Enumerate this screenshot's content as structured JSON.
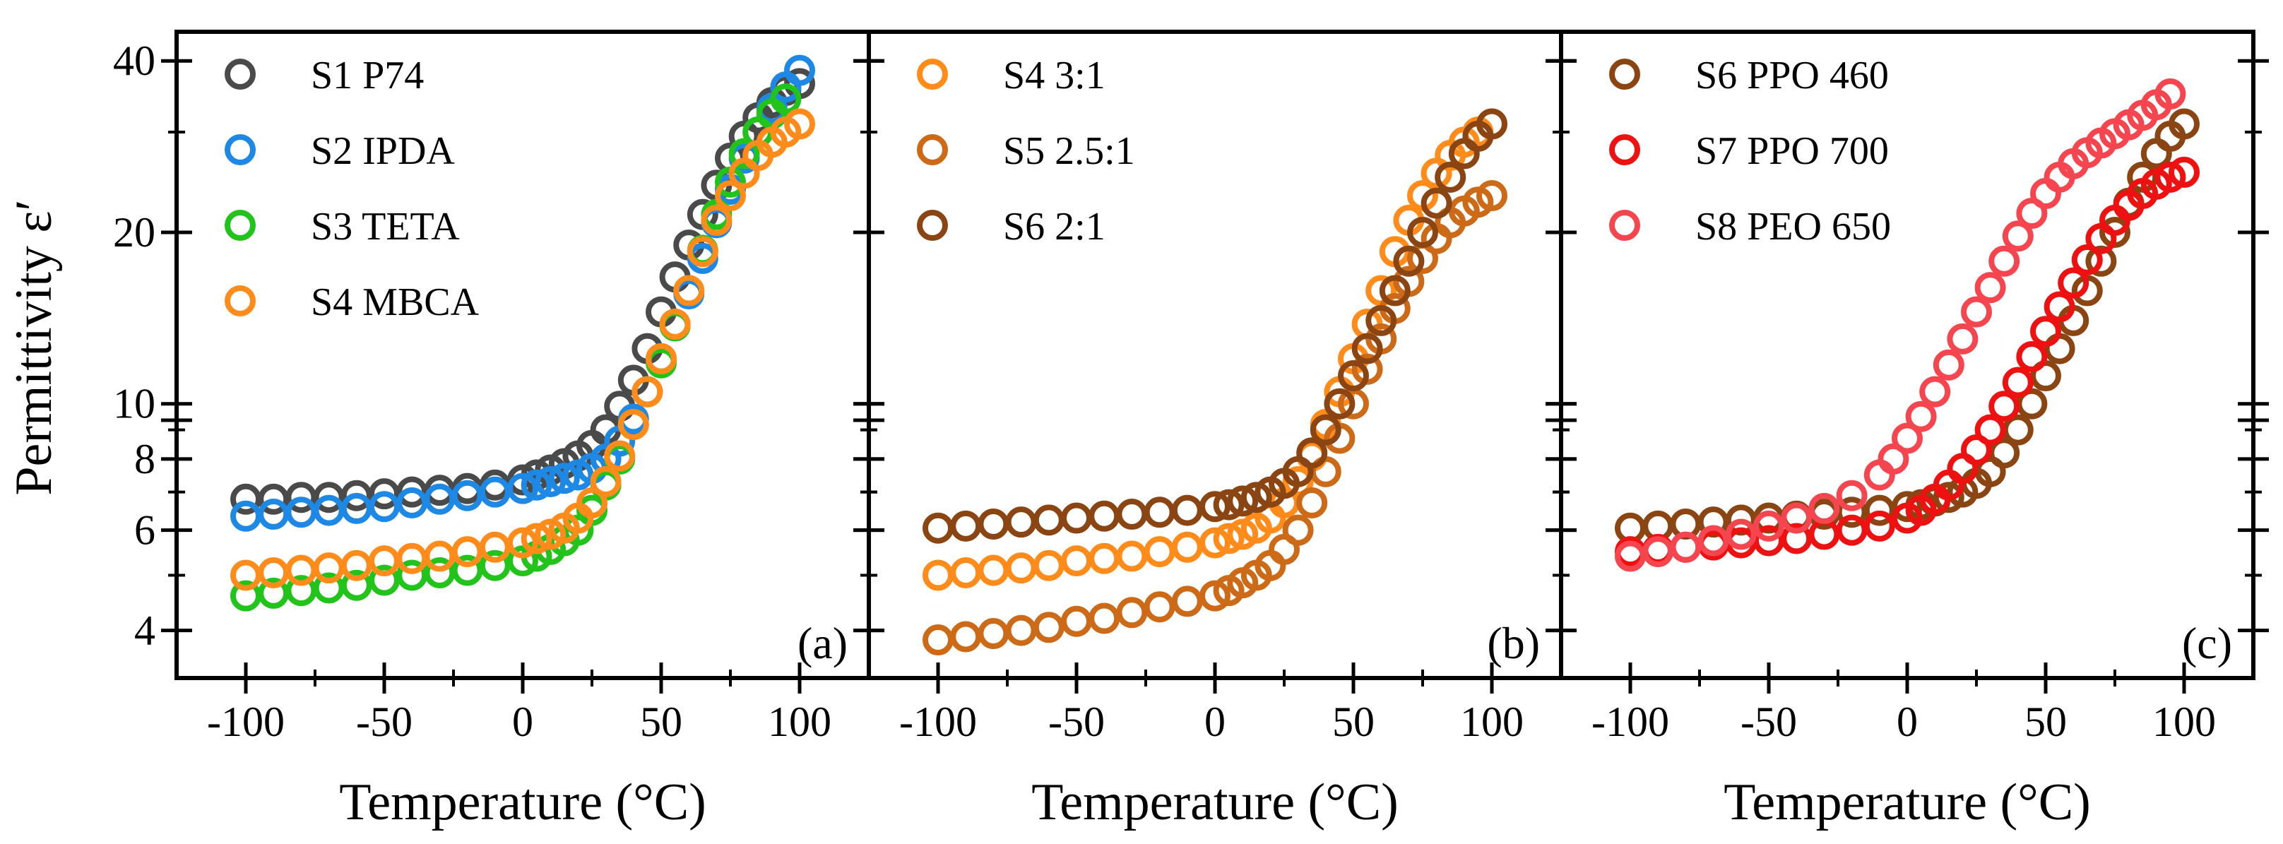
{
  "figure": {
    "ylabel": "Permittivity ε′",
    "xlabel": "Temperature  (°C)"
  },
  "chart_data": [
    {
      "type": "scatter",
      "panel": "(a)",
      "xlabel": "Temperature  (°C)",
      "ylabel": "Permittivity ε′",
      "xlim": [
        -125,
        125
      ],
      "ylim": [
        3.3,
        45
      ],
      "yscale": "log",
      "xticks": [
        -100,
        -50,
        0,
        50,
        100
      ],
      "yticks": [
        4,
        6,
        8,
        10,
        20,
        40
      ],
      "legend_position": "top-left",
      "series": [
        {
          "name": "S1 P74",
          "color": "#4a4a4a",
          "x": [
            -100,
            -90,
            -80,
            -70,
            -60,
            -50,
            -40,
            -30,
            -20,
            -10,
            0,
            5,
            10,
            15,
            20,
            25,
            30,
            35,
            40,
            45,
            50,
            55,
            60,
            65,
            70,
            75,
            80,
            85,
            90,
            95,
            100
          ],
          "y": [
            6.8,
            6.8,
            6.85,
            6.85,
            6.9,
            6.95,
            7.0,
            7.05,
            7.1,
            7.2,
            7.35,
            7.5,
            7.65,
            7.85,
            8.1,
            8.45,
            9.0,
            9.9,
            11.0,
            12.5,
            14.5,
            16.7,
            19.0,
            21.5,
            24.2,
            27.0,
            29.5,
            31.8,
            33.8,
            35.5,
            36.5
          ]
        },
        {
          "name": "S2 IPDA",
          "color": "#1e88e5",
          "x": [
            -100,
            -90,
            -80,
            -70,
            -60,
            -50,
            -40,
            -30,
            -20,
            -10,
            0,
            5,
            10,
            15,
            20,
            25,
            30,
            35,
            40,
            45,
            50,
            55,
            60,
            65,
            70,
            75,
            80,
            85,
            90,
            95,
            100
          ],
          "y": [
            6.35,
            6.4,
            6.45,
            6.5,
            6.55,
            6.6,
            6.7,
            6.8,
            6.9,
            7.0,
            7.1,
            7.2,
            7.3,
            7.4,
            7.5,
            7.7,
            8.0,
            8.6,
            9.4,
            10.5,
            12.0,
            13.8,
            15.6,
            18.0,
            20.8,
            23.8,
            27.0,
            30.0,
            33.0,
            36.0,
            38.5
          ]
        },
        {
          "name": "S3 TETA",
          "color": "#22c41c",
          "x": [
            -100,
            -90,
            -80,
            -70,
            -60,
            -50,
            -40,
            -30,
            -20,
            -10,
            0,
            5,
            10,
            15,
            20,
            25,
            30,
            35,
            40,
            45,
            50,
            55,
            60,
            65,
            70,
            75,
            80,
            85,
            90,
            95
          ],
          "y": [
            4.6,
            4.65,
            4.7,
            4.75,
            4.8,
            4.9,
            5.0,
            5.05,
            5.1,
            5.2,
            5.3,
            5.4,
            5.55,
            5.75,
            6.0,
            6.5,
            7.2,
            8.0,
            9.2,
            10.5,
            11.8,
            13.7,
            15.8,
            18.6,
            21.5,
            24.5,
            27.5,
            30.0,
            32.3,
            34.3
          ]
        },
        {
          "name": "S4 MBCA",
          "color": "#ff8c1a",
          "x": [
            -100,
            -90,
            -80,
            -70,
            -60,
            -50,
            -40,
            -30,
            -20,
            -10,
            0,
            5,
            10,
            15,
            20,
            25,
            30,
            35,
            40,
            45,
            50,
            55,
            60,
            65,
            70,
            75,
            80,
            85,
            90,
            95,
            100
          ],
          "y": [
            5.0,
            5.05,
            5.1,
            5.15,
            5.2,
            5.3,
            5.35,
            5.4,
            5.5,
            5.6,
            5.7,
            5.8,
            5.9,
            6.05,
            6.3,
            6.7,
            7.3,
            8.1,
            9.2,
            10.5,
            12.0,
            13.8,
            15.8,
            18.5,
            21.0,
            23.2,
            25.4,
            27.3,
            28.8,
            30.0,
            31.0
          ]
        }
      ]
    },
    {
      "type": "scatter",
      "panel": "(b)",
      "xlabel": "Temperature  (°C)",
      "xlim": [
        -125,
        125
      ],
      "ylim": [
        3.3,
        45
      ],
      "yscale": "log",
      "xticks": [
        -100,
        -50,
        0,
        50,
        100
      ],
      "legend_position": "top-left",
      "series": [
        {
          "name": "S4 3:1",
          "color": "#ff8c1a",
          "x": [
            -100,
            -90,
            -80,
            -70,
            -60,
            -50,
            -40,
            -30,
            -20,
            -10,
            0,
            5,
            10,
            15,
            20,
            25,
            30,
            35,
            40,
            45,
            50,
            55,
            60,
            65,
            70,
            75,
            80,
            85,
            90,
            95,
            100
          ],
          "y": [
            5.0,
            5.05,
            5.1,
            5.15,
            5.2,
            5.3,
            5.35,
            5.4,
            5.5,
            5.6,
            5.7,
            5.8,
            5.9,
            6.05,
            6.3,
            6.7,
            7.3,
            8.1,
            9.2,
            10.5,
            12.0,
            13.8,
            15.8,
            18.5,
            21.0,
            23.2,
            25.4,
            27.3,
            28.8,
            30.0,
            31.0
          ]
        },
        {
          "name": "S5 2.5:1",
          "color": "#cc6a18",
          "x": [
            -100,
            -90,
            -80,
            -70,
            -60,
            -50,
            -40,
            -30,
            -20,
            -10,
            0,
            5,
            10,
            15,
            20,
            25,
            30,
            35,
            40,
            45,
            50,
            55,
            60,
            65,
            70,
            75,
            80,
            85,
            90,
            95,
            100
          ],
          "y": [
            3.85,
            3.9,
            3.95,
            4.0,
            4.05,
            4.15,
            4.2,
            4.3,
            4.4,
            4.5,
            4.6,
            4.7,
            4.85,
            5.0,
            5.2,
            5.55,
            6.0,
            6.7,
            7.6,
            8.7,
            10.0,
            11.5,
            13.0,
            14.7,
            16.4,
            18.0,
            19.5,
            20.8,
            21.8,
            22.6,
            23.2
          ]
        },
        {
          "name": "S6 2:1",
          "color": "#8b4513",
          "x": [
            -100,
            -90,
            -80,
            -70,
            -60,
            -50,
            -40,
            -30,
            -20,
            -10,
            0,
            5,
            10,
            15,
            20,
            25,
            30,
            35,
            40,
            45,
            50,
            55,
            60,
            65,
            70,
            75,
            80,
            85,
            90,
            95,
            100
          ],
          "y": [
            6.05,
            6.1,
            6.15,
            6.2,
            6.25,
            6.3,
            6.35,
            6.4,
            6.45,
            6.5,
            6.6,
            6.65,
            6.75,
            6.85,
            7.0,
            7.25,
            7.6,
            8.2,
            9.0,
            10.0,
            11.2,
            12.5,
            14.0,
            15.8,
            17.8,
            20.0,
            22.5,
            25.0,
            27.5,
            29.5,
            31.0
          ]
        }
      ]
    },
    {
      "type": "scatter",
      "panel": "(c)",
      "xlabel": "Temperature  (°C)",
      "xlim": [
        -125,
        125
      ],
      "ylim": [
        3.3,
        45
      ],
      "yscale": "log",
      "xticks": [
        -100,
        -50,
        0,
        50,
        100
      ],
      "legend_position": "top-left",
      "series": [
        {
          "name": "S6 PPO 460",
          "color": "#8b4513",
          "x": [
            -100,
            -90,
            -80,
            -70,
            -60,
            -50,
            -40,
            -30,
            -20,
            -10,
            0,
            5,
            10,
            15,
            20,
            25,
            30,
            35,
            40,
            45,
            50,
            55,
            60,
            65,
            70,
            75,
            80,
            85,
            90,
            95,
            100
          ],
          "y": [
            6.05,
            6.1,
            6.15,
            6.2,
            6.25,
            6.3,
            6.35,
            6.4,
            6.45,
            6.5,
            6.6,
            6.65,
            6.75,
            6.85,
            7.0,
            7.25,
            7.6,
            8.2,
            9.0,
            10.0,
            11.2,
            12.5,
            14.0,
            15.8,
            17.8,
            20.0,
            22.5,
            25.0,
            27.5,
            29.5,
            31.0
          ]
        },
        {
          "name": "S7 PPO 700",
          "color": "#ee1111",
          "x": [
            -100,
            -90,
            -80,
            -70,
            -60,
            -50,
            -40,
            -30,
            -20,
            -10,
            0,
            5,
            10,
            15,
            20,
            25,
            30,
            35,
            40,
            45,
            50,
            55,
            60,
            65,
            70,
            75,
            80,
            85,
            90,
            95,
            100
          ],
          "y": [
            5.5,
            5.55,
            5.6,
            5.65,
            5.7,
            5.75,
            5.8,
            5.9,
            6.0,
            6.1,
            6.3,
            6.5,
            6.8,
            7.2,
            7.7,
            8.3,
            9.0,
            9.9,
            10.9,
            12.1,
            13.4,
            14.8,
            16.3,
            17.9,
            19.5,
            21.0,
            22.3,
            23.4,
            24.3,
            25.0,
            25.5
          ]
        },
        {
          "name": "S8 PEO 650",
          "color": "#f5454f",
          "x": [
            -100,
            -90,
            -80,
            -70,
            -60,
            -50,
            -40,
            -30,
            -20,
            -10,
            -5,
            0,
            5,
            10,
            15,
            20,
            25,
            30,
            35,
            40,
            45,
            50,
            55,
            60,
            65,
            70,
            75,
            80,
            85,
            90,
            95
          ],
          "y": [
            5.4,
            5.5,
            5.6,
            5.75,
            5.9,
            6.1,
            6.3,
            6.55,
            6.9,
            7.5,
            8.0,
            8.7,
            9.5,
            10.5,
            11.7,
            13.0,
            14.5,
            16.0,
            17.8,
            19.7,
            21.6,
            23.4,
            25.0,
            26.4,
            27.6,
            28.7,
            29.8,
            30.9,
            32.1,
            33.5,
            35.0
          ]
        }
      ]
    }
  ]
}
